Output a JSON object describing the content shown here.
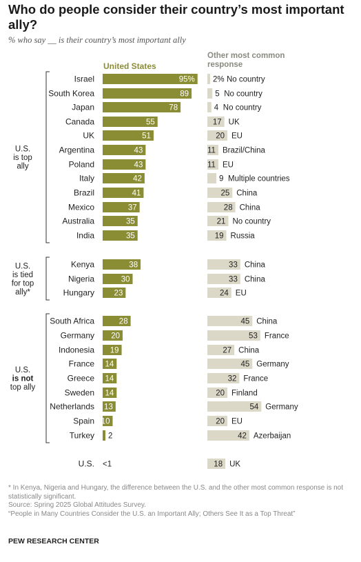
{
  "header": {
    "title": "Who do people consider their country’s most important ally?",
    "subtitle": "% who say __ is their country’s most important ally"
  },
  "columns": {
    "us": "United States",
    "other": "Other most common response"
  },
  "groups": [
    {
      "label_lines": [
        "U.S.",
        "is top",
        "ally"
      ],
      "bold_line": -1
    },
    {
      "label_lines": [
        "U.S.",
        "is tied",
        "for top",
        "ally*"
      ],
      "bold_line": -1
    },
    {
      "label_lines": [
        "U.S.",
        "is not",
        "top ally"
      ],
      "bold_line": 1
    }
  ],
  "colors": {
    "us_bar": "#8b8d35",
    "other_bar": "#dcd8c8",
    "bracket": "#333333"
  },
  "chart_data": {
    "type": "bar",
    "categories": [
      "Israel",
      "South Korea",
      "Japan",
      "Canada",
      "UK",
      "Argentina",
      "Poland",
      "Italy",
      "Brazil",
      "Mexico",
      "Australia",
      "India",
      "Kenya",
      "Nigeria",
      "Hungary",
      "South Africa",
      "Germany",
      "Indonesia",
      "France",
      "Greece",
      "Sweden",
      "Netherlands",
      "Spain",
      "Turkey",
      "U.S."
    ],
    "group_index": [
      0,
      0,
      0,
      0,
      0,
      0,
      0,
      0,
      0,
      0,
      0,
      0,
      1,
      1,
      1,
      2,
      2,
      2,
      2,
      2,
      2,
      2,
      2,
      2,
      -1
    ],
    "series": [
      {
        "name": "United States",
        "values": [
          95,
          89,
          78,
          55,
          51,
          43,
          43,
          42,
          41,
          37,
          35,
          35,
          38,
          30,
          23,
          28,
          20,
          19,
          14,
          14,
          14,
          13,
          10,
          2,
          null
        ],
        "labels": [
          "95%",
          "89",
          "78",
          "55",
          "51",
          "43",
          "43",
          "42",
          "41",
          "37",
          "35",
          "35",
          "38",
          "30",
          "23",
          "28",
          "20",
          "19",
          "14",
          "14",
          "14",
          "13",
          "10",
          "2",
          "<1"
        ]
      },
      {
        "name": "Other most common response",
        "values": [
          2,
          5,
          4,
          17,
          20,
          11,
          11,
          9,
          25,
          28,
          21,
          19,
          33,
          33,
          24,
          45,
          53,
          27,
          45,
          32,
          20,
          54,
          20,
          42,
          18
        ],
        "labels": [
          "2%",
          "5",
          "4",
          "17",
          "20",
          "11",
          "11",
          "9",
          "25",
          "28",
          "21",
          "19",
          "33",
          "33",
          "24",
          "45",
          "53",
          "27",
          "45",
          "32",
          "20",
          "54",
          "20",
          "42",
          "18"
        ],
        "responses": [
          "No country",
          "No country",
          "No country",
          "UK",
          "EU",
          "Brazil/China",
          "EU",
          "Multiple countries",
          "China",
          "China",
          "No country",
          "Russia",
          "China",
          "China",
          "EU",
          "China",
          "France",
          "China",
          "Germany",
          "France",
          "Finland",
          "Germany",
          "EU",
          "Azerbaijan",
          "UK"
        ]
      }
    ],
    "xlim": [
      0,
      100
    ]
  },
  "footer": {
    "note": "* In Kenya, Nigeria and Hungary, the difference between the U.S. and the other most common response is not statistically significant.",
    "source": "Source: Spring 2025 Global Attitudes Survey.",
    "report": "“People in Many Countries Consider the U.S. an Important Ally; Others See It as a Top Threat”",
    "org": "PEW RESEARCH CENTER"
  }
}
